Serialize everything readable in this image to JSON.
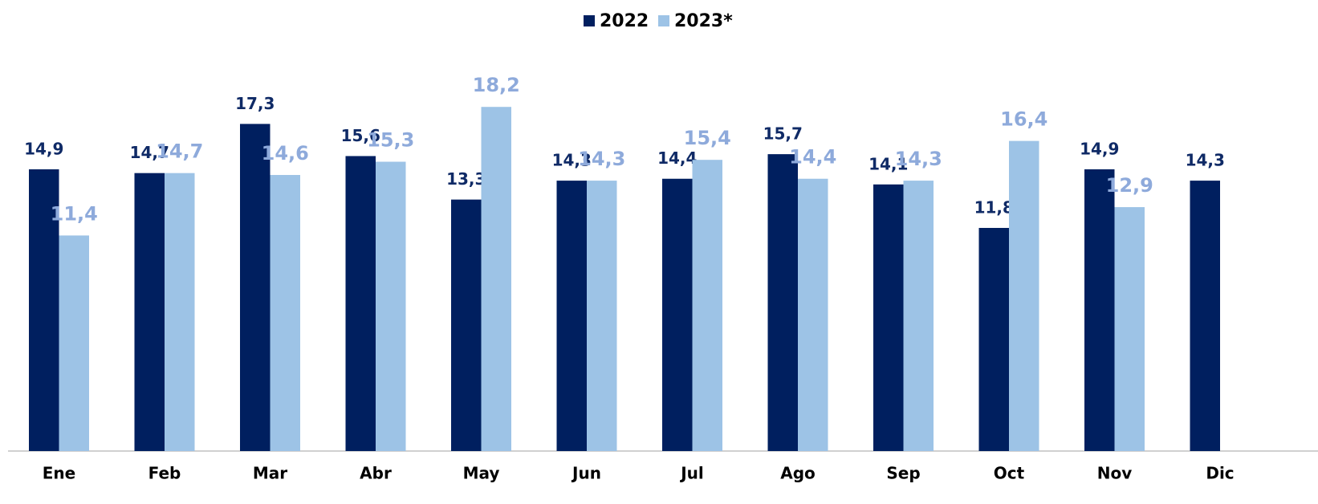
{
  "chart_data": {
    "type": "bar",
    "categories": [
      "Ene",
      "Feb",
      "Mar",
      "Abr",
      "May",
      "Jun",
      "Jul",
      "Ago",
      "Sep",
      "Oct",
      "Nov",
      "Dic"
    ],
    "series": [
      {
        "name": "2022",
        "color": "#001f5f",
        "label_color": "#0f2a66",
        "values": [
          14.9,
          14.7,
          17.3,
          15.6,
          13.3,
          14.3,
          14.4,
          15.7,
          14.1,
          11.8,
          14.9,
          14.3
        ],
        "value_labels": [
          "14,9",
          "14,7",
          "17,3",
          "15,6",
          "13,3",
          "14,3",
          "14,4",
          "15,7",
          "14,1",
          "11,8",
          "14,9",
          "14,3"
        ]
      },
      {
        "name": "2023*",
        "color": "#9dc3e6",
        "label_color": "#8eaadb",
        "values": [
          11.4,
          14.7,
          14.6,
          15.3,
          18.2,
          14.3,
          15.4,
          14.4,
          14.3,
          16.4,
          12.9,
          null
        ],
        "value_labels": [
          "11,4",
          "14,7",
          "14,6",
          "15,3",
          "18,2",
          "14,3",
          "15,4",
          "14,4",
          "14,3",
          "16,4",
          "12,9",
          null
        ]
      }
    ],
    "legend": "top"
  }
}
